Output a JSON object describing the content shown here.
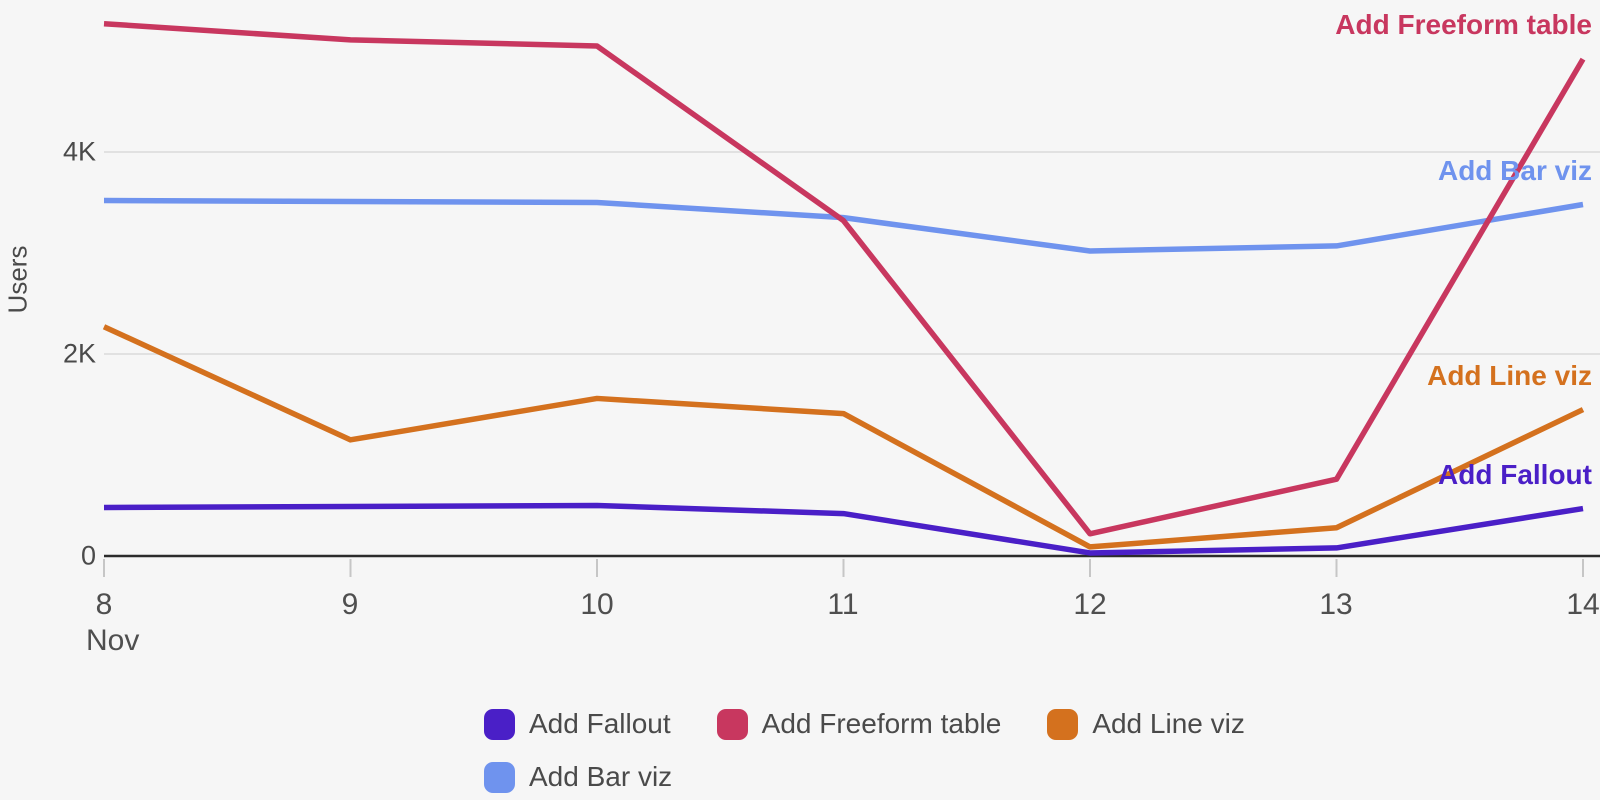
{
  "chart_data": {
    "type": "line",
    "title": "",
    "ylabel": "Users",
    "x_month_label": "Nov",
    "x_tick_labels": [
      "8",
      "9",
      "10",
      "11",
      "12",
      "13",
      "14"
    ],
    "y_tick_labels": [
      "0",
      "2K",
      "4K"
    ],
    "y_tick_values": [
      0,
      2000,
      4000
    ],
    "ylim": [
      0,
      5600
    ],
    "grid": "horizontal",
    "legend_position": "bottom",
    "series": [
      {
        "name": "Add Fallout",
        "color": "#4a1fc7",
        "values": [
          480,
          490,
          500,
          420,
          30,
          80,
          470
        ]
      },
      {
        "name": "Add Freeform table",
        "color": "#c8375f",
        "values": [
          5270,
          5110,
          5050,
          3320,
          220,
          760,
          4920
        ]
      },
      {
        "name": "Add Line viz",
        "color": "#d4711e",
        "values": [
          2270,
          1150,
          1560,
          1410,
          90,
          280,
          1450
        ]
      },
      {
        "name": "Add Bar viz",
        "color": "#6f93ee",
        "values": [
          3520,
          3510,
          3500,
          3350,
          3020,
          3070,
          3480
        ]
      }
    ]
  }
}
